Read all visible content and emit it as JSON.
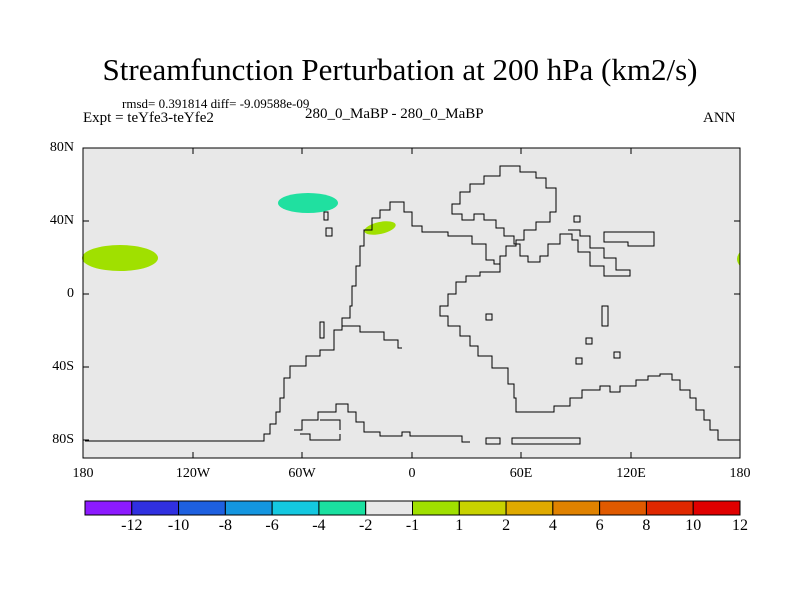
{
  "title": "Streamfunction Perturbation at 200 hPa (km2/s)",
  "stats": "rmsd= 0.391814 diff= -9.09588e-09",
  "experiment": "Expt = teYfe3-teYfe2",
  "case": "280_0_MaBP - 280_0_MaBP",
  "season": "ANN",
  "map": {
    "lat_ticks": [
      "80N",
      "40N",
      "0",
      "40S",
      "80S"
    ],
    "lon_ticks": [
      "180",
      "120W",
      "60W",
      "0",
      "60E",
      "120E",
      "180"
    ],
    "background_color": "#e8e8e8",
    "features": [
      {
        "name": "anomaly-north-pacific",
        "lon": -165,
        "lat": 20,
        "level": "1 to 2",
        "color": "#a0e000"
      },
      {
        "name": "anomaly-north-atlantic",
        "lon": -55,
        "lat": 50,
        "level": "-2 to -1",
        "color": "#20e0a0"
      },
      {
        "name": "anomaly-mid-atlantic",
        "lon": -18,
        "lat": 36,
        "level": "1 to 2",
        "color": "#a0e000"
      },
      {
        "name": "anomaly-dateline-edge",
        "lon": 180,
        "lat": 19,
        "level": "1 to 2",
        "color": "#a0e000"
      }
    ]
  },
  "colorbar": {
    "labels": [
      "-12",
      "-10",
      "-8",
      "-6",
      "-4",
      "-2",
      "-1",
      "1",
      "2",
      "4",
      "6",
      "8",
      "10",
      "12"
    ],
    "colors": [
      "#8c1aff",
      "#3030e0",
      "#1e60e0",
      "#1496e0",
      "#14c8e0",
      "#1ae0a0",
      "#e8e8e8",
      "#a0e000",
      "#c8d200",
      "#e0aa00",
      "#e08200",
      "#e05a00",
      "#e02800",
      "#e00000"
    ]
  }
}
